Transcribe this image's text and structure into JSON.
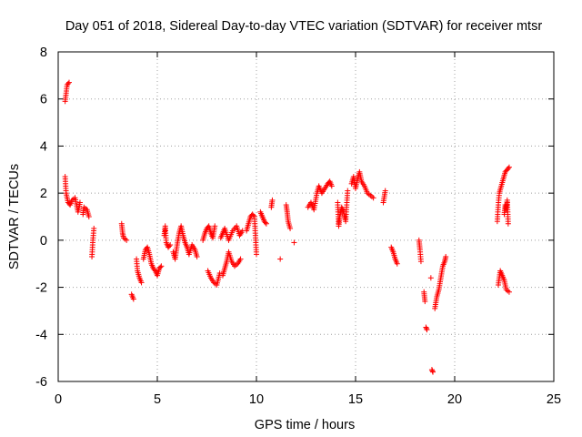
{
  "chart_data": {
    "type": "scatter",
    "title": "Day 051 of 2018, Sidereal Day-to-day VTEC variation (SDTVAR) for receiver mtsr",
    "xlabel": "GPS time / hours",
    "ylabel": "SDTVAR / TECUs",
    "xlim": [
      0,
      25
    ],
    "ylim": [
      -6,
      8
    ],
    "xticks": [
      "0",
      "5",
      "10",
      "15",
      "20",
      "25"
    ],
    "yticks": [
      "-6",
      "-4",
      "-2",
      "0",
      "2",
      "4",
      "6",
      "8"
    ],
    "grid": true,
    "marker": "+",
    "marker_color": "#ff0000",
    "segments": [
      [
        [
          0.35,
          5.9
        ],
        [
          0.45,
          6.6
        ],
        [
          0.55,
          6.7
        ]
      ],
      [
        [
          0.35,
          2.7
        ],
        [
          0.4,
          2.0
        ],
        [
          0.5,
          1.6
        ],
        [
          0.6,
          1.5
        ],
        [
          0.7,
          1.7
        ],
        [
          0.85,
          1.8
        ],
        [
          1.0,
          1.2
        ],
        [
          1.1,
          1.6
        ]
      ],
      [
        [
          1.25,
          1.1
        ],
        [
          1.3,
          1.4
        ],
        [
          1.45,
          1.3
        ],
        [
          1.55,
          1.0
        ]
      ],
      [
        [
          1.7,
          -0.7
        ],
        [
          1.75,
          0.0
        ],
        [
          1.8,
          0.5
        ]
      ],
      [
        [
          3.2,
          0.7
        ],
        [
          3.25,
          0.3
        ],
        [
          3.3,
          0.1
        ],
        [
          3.45,
          0.0
        ]
      ],
      [
        [
          3.7,
          -2.3
        ],
        [
          3.8,
          -2.5
        ]
      ],
      [
        [
          3.95,
          -0.8
        ],
        [
          4.0,
          -1.3
        ],
        [
          4.1,
          -1.6
        ],
        [
          4.2,
          -1.8
        ]
      ],
      [
        [
          4.3,
          -0.8
        ],
        [
          4.4,
          -0.4
        ],
        [
          4.5,
          -0.3
        ],
        [
          4.6,
          -0.6
        ],
        [
          4.7,
          -1.0
        ],
        [
          4.8,
          -1.2
        ],
        [
          4.9,
          -1.3
        ],
        [
          5.0,
          -1.5
        ],
        [
          5.1,
          -1.2
        ],
        [
          5.2,
          -1.1
        ]
      ],
      [
        [
          5.35,
          0.2
        ],
        [
          5.4,
          0.6
        ],
        [
          5.45,
          -0.1
        ],
        [
          5.55,
          -0.3
        ],
        [
          5.65,
          -0.2
        ]
      ],
      [
        [
          5.8,
          -0.5
        ],
        [
          5.9,
          -0.8
        ],
        [
          6.0,
          -0.2
        ],
        [
          6.1,
          0.3
        ],
        [
          6.2,
          0.6
        ],
        [
          6.3,
          0.2
        ],
        [
          6.4,
          -0.1
        ],
        [
          6.5,
          -0.3
        ],
        [
          6.6,
          -0.6
        ],
        [
          6.75,
          -0.2
        ],
        [
          6.9,
          -0.4
        ],
        [
          7.0,
          -0.7
        ]
      ],
      [
        [
          7.3,
          0.0
        ],
        [
          7.4,
          0.3
        ],
        [
          7.5,
          0.5
        ],
        [
          7.6,
          0.6
        ],
        [
          7.7,
          0.3
        ],
        [
          7.8,
          0.1
        ],
        [
          7.9,
          0.6
        ]
      ],
      [
        [
          7.55,
          -1.3
        ],
        [
          7.7,
          -1.6
        ],
        [
          7.85,
          -1.8
        ],
        [
          8.0,
          -1.9
        ],
        [
          8.15,
          -1.4
        ]
      ],
      [
        [
          8.3,
          -1.5
        ],
        [
          8.4,
          -1.2
        ],
        [
          8.5,
          -0.9
        ],
        [
          8.6,
          -0.5
        ],
        [
          8.75,
          -0.9
        ],
        [
          8.9,
          -1.1
        ],
        [
          9.05,
          -1.0
        ],
        [
          9.2,
          -0.8
        ]
      ],
      [
        [
          8.2,
          0.1
        ],
        [
          8.3,
          0.3
        ],
        [
          8.4,
          0.5
        ],
        [
          8.6,
          0.0
        ],
        [
          8.8,
          0.4
        ],
        [
          9.0,
          0.6
        ],
        [
          9.15,
          0.2
        ],
        [
          9.3,
          0.4
        ]
      ],
      [
        [
          9.5,
          0.4
        ],
        [
          9.6,
          0.7
        ],
        [
          9.7,
          1.0
        ],
        [
          9.8,
          1.1
        ],
        [
          9.9,
          1.0
        ],
        [
          10.0,
          -0.6
        ]
      ],
      [
        [
          10.2,
          1.2
        ],
        [
          10.3,
          1.0
        ],
        [
          10.4,
          0.8
        ],
        [
          10.5,
          0.7
        ]
      ],
      [
        [
          10.75,
          1.4
        ],
        [
          10.8,
          1.7
        ]
      ],
      [
        [
          11.2,
          -0.8
        ]
      ],
      [
        [
          11.5,
          1.5
        ],
        [
          11.55,
          1.2
        ],
        [
          11.6,
          0.8
        ],
        [
          11.7,
          0.5
        ]
      ],
      [
        [
          11.9,
          -0.1
        ]
      ],
      [
        [
          12.6,
          1.4
        ],
        [
          12.75,
          1.6
        ],
        [
          12.9,
          1.3
        ],
        [
          13.05,
          2.0
        ],
        [
          13.15,
          2.3
        ],
        [
          13.3,
          2.0
        ],
        [
          13.45,
          2.2
        ],
        [
          13.6,
          2.4
        ],
        [
          13.7,
          2.5
        ],
        [
          13.8,
          2.3
        ]
      ],
      [
        [
          14.1,
          1.6
        ],
        [
          14.15,
          0.6
        ],
        [
          14.2,
          1.0
        ],
        [
          14.3,
          1.4
        ],
        [
          14.4,
          1.2
        ],
        [
          14.5,
          0.8
        ],
        [
          14.6,
          2.1
        ]
      ],
      [
        [
          14.8,
          2.4
        ],
        [
          14.9,
          2.7
        ],
        [
          15.0,
          2.2
        ],
        [
          15.1,
          2.6
        ],
        [
          15.2,
          2.9
        ],
        [
          15.3,
          2.5
        ],
        [
          15.45,
          2.3
        ],
        [
          15.6,
          2.0
        ],
        [
          15.75,
          1.9
        ],
        [
          15.9,
          1.8
        ]
      ],
      [
        [
          16.4,
          1.6
        ],
        [
          16.5,
          2.1
        ]
      ],
      [
        [
          16.8,
          -0.3
        ],
        [
          16.9,
          -0.5
        ],
        [
          17.0,
          -0.8
        ],
        [
          17.1,
          -1.0
        ]
      ],
      [
        [
          18.2,
          0.0
        ],
        [
          18.25,
          -0.4
        ],
        [
          18.3,
          -0.9
        ]
      ],
      [
        [
          18.45,
          -2.2
        ],
        [
          18.5,
          -2.6
        ]
      ],
      [
        [
          18.55,
          -3.7
        ],
        [
          18.6,
          -3.8
        ]
      ],
      [
        [
          18.8,
          -1.6
        ]
      ],
      [
        [
          18.85,
          -5.5
        ],
        [
          18.9,
          -5.6
        ]
      ],
      [
        [
          19.0,
          -2.9
        ],
        [
          19.1,
          -2.4
        ],
        [
          19.2,
          -2.1
        ],
        [
          19.3,
          -1.6
        ],
        [
          19.4,
          -1.1
        ],
        [
          19.5,
          -0.9
        ],
        [
          19.55,
          -0.7
        ]
      ],
      [
        [
          22.15,
          0.8
        ],
        [
          22.2,
          1.5
        ],
        [
          22.25,
          2.0
        ],
        [
          22.35,
          2.3
        ],
        [
          22.45,
          2.6
        ],
        [
          22.55,
          2.9
        ],
        [
          22.65,
          3.0
        ],
        [
          22.75,
          3.1
        ]
      ],
      [
        [
          22.5,
          1.1
        ],
        [
          22.55,
          1.5
        ],
        [
          22.6,
          1.3
        ],
        [
          22.65,
          1.7
        ],
        [
          22.7,
          0.7
        ]
      ],
      [
        [
          22.2,
          -1.9
        ],
        [
          22.3,
          -1.3
        ],
        [
          22.4,
          -1.5
        ],
        [
          22.5,
          -1.7
        ],
        [
          22.6,
          -2.1
        ],
        [
          22.75,
          -2.2
        ]
      ]
    ]
  }
}
